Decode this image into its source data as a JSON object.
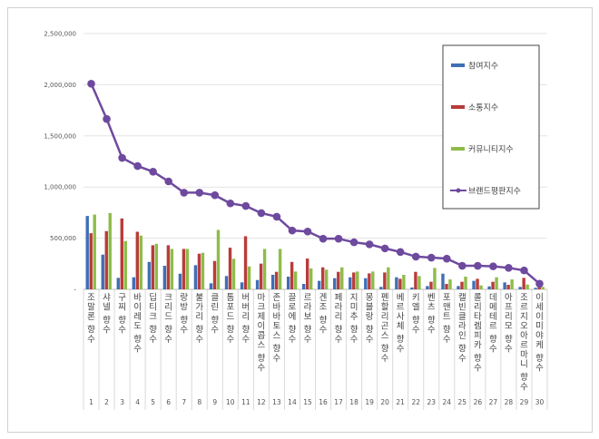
{
  "chart_data": {
    "type": "bar",
    "categories": [
      "조말론 향수",
      "샤넬 향수",
      "구찌 향수",
      "바이레도 향수",
      "딥티크 향수",
      "크리드 향수",
      "랑방 향수",
      "불가리 향수",
      "클린 향수",
      "톰포드 향수",
      "버버리 향수",
      "마크제이콥스 향수",
      "존바바토스 향수",
      "끌로에 향수",
      "르라보 향수",
      "겐조 향수",
      "페라리 향수",
      "지미추 향수",
      "몽블랑 향수",
      "펜할리곤스 향수",
      "베르사체 향수",
      "키엘 향수",
      "벤츠 향수",
      "포맨트 향수",
      "캘빈클라인 향수",
      "롤리타렘피카 향수",
      "데메테르 향수",
      "아프리모 향수",
      "조르지오아르마니 향수",
      "이세이미야케 향수"
    ],
    "ranks": [
      "1",
      "2",
      "3",
      "4",
      "5",
      "6",
      "7",
      "8",
      "9",
      "10",
      "11",
      "12",
      "13",
      "14",
      "15",
      "16",
      "17",
      "18",
      "19",
      "20",
      "21",
      "22",
      "23",
      "24",
      "25",
      "26",
      "27",
      "28",
      "29",
      "30"
    ],
    "series": [
      {
        "name": "참여지수",
        "type": "bar",
        "color": "#3f6fb5",
        "values": [
          717000,
          339000,
          112000,
          118000,
          268000,
          230000,
          153000,
          236000,
          59000,
          130000,
          68000,
          91000,
          142000,
          124000,
          53000,
          83000,
          109000,
          118000,
          109000,
          24000,
          118000,
          18000,
          32000,
          153000,
          32000,
          83000,
          29000,
          68000,
          24000,
          15000
        ]
      },
      {
        "name": "소통지수",
        "type": "bar",
        "color": "#b83c3a",
        "values": [
          549000,
          569000,
          693000,
          563000,
          431000,
          431000,
          395000,
          348000,
          277000,
          407000,
          519000,
          251000,
          171000,
          268000,
          301000,
          215000,
          171000,
          165000,
          156000,
          165000,
          103000,
          171000,
          74000,
          53000,
          74000,
          103000,
          74000,
          44000,
          112000,
          24000
        ]
      },
      {
        "name": "커뮤니티지수",
        "type": "bar",
        "color": "#8fbc4a",
        "values": [
          731000,
          746000,
          472000,
          525000,
          445000,
          395000,
          395000,
          357000,
          581000,
          298000,
          224000,
          395000,
          395000,
          174000,
          204000,
          192000,
          215000,
          174000,
          174000,
          215000,
          142000,
          130000,
          209000,
          97000,
          124000,
          38000,
          118000,
          97000,
          47000,
          24000
        ]
      },
      {
        "name": "브랜드평판지수",
        "type": "line",
        "color": "#6e4a9e",
        "values": [
          2010000,
          1665000,
          1285000,
          1205000,
          1150000,
          1055000,
          945000,
          945000,
          920000,
          840000,
          815000,
          745000,
          710000,
          575000,
          565000,
          495000,
          495000,
          460000,
          440000,
          400000,
          365000,
          320000,
          310000,
          300000,
          230000,
          230000,
          225000,
          210000,
          185000,
          55000
        ]
      }
    ],
    "y_ticks": [
      "-",
      "500,000",
      "1,000,000",
      "1,500,000",
      "2,000,000",
      "2,500,000"
    ],
    "ylim": [
      0,
      2500000
    ],
    "grid": true,
    "legend_position": "right"
  }
}
